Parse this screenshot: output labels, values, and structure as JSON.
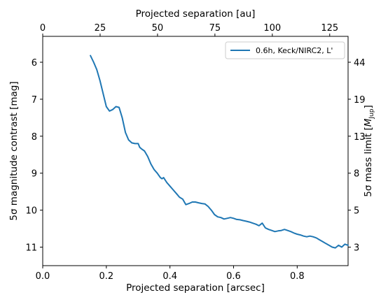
{
  "chart_data": {
    "type": "line",
    "xlabel_bottom": "Projected separation [arcsec]",
    "xlabel_top": "Projected separation [au]",
    "ylabel_left": "5σ magnitude contrast [mag]",
    "ylabel_right_prefix": "5σ mass limit [",
    "ylabel_right_symbol": "M",
    "ylabel_right_sub": "Jup",
    "ylabel_right_suffix": "]",
    "xlim": [
      0.0,
      0.96
    ],
    "ylim": [
      11.5,
      5.3
    ],
    "y_inverted": true,
    "top_xlim_au": [
      0,
      133
    ],
    "xticks_bottom": [
      "0.0",
      "0.2",
      "0.4",
      "0.6",
      "0.8"
    ],
    "xticks_top": [
      "0",
      "25",
      "50",
      "75",
      "100",
      "125"
    ],
    "yticks_left": [
      "6",
      "7",
      "8",
      "9",
      "10",
      "11"
    ],
    "yticks_right": [
      "44",
      "19",
      "13",
      "8",
      "5",
      "3"
    ],
    "legend_position": "upper-right",
    "grid": false,
    "series": [
      {
        "name": "0.6h, Keck/NIRC2, L'",
        "color": "#1f77b4",
        "x": [
          0.15,
          0.16,
          0.17,
          0.18,
          0.19,
          0.2,
          0.21,
          0.22,
          0.23,
          0.24,
          0.25,
          0.26,
          0.27,
          0.28,
          0.29,
          0.3,
          0.305,
          0.31,
          0.32,
          0.33,
          0.34,
          0.35,
          0.36,
          0.37,
          0.375,
          0.38,
          0.39,
          0.4,
          0.41,
          0.42,
          0.43,
          0.44,
          0.45,
          0.46,
          0.47,
          0.48,
          0.49,
          0.5,
          0.51,
          0.52,
          0.53,
          0.54,
          0.55,
          0.56,
          0.57,
          0.58,
          0.59,
          0.6,
          0.61,
          0.62,
          0.63,
          0.64,
          0.65,
          0.66,
          0.67,
          0.68,
          0.69,
          0.7,
          0.71,
          0.72,
          0.73,
          0.74,
          0.75,
          0.76,
          0.77,
          0.78,
          0.79,
          0.8,
          0.81,
          0.82,
          0.83,
          0.84,
          0.85,
          0.86,
          0.87,
          0.88,
          0.89,
          0.9,
          0.91,
          0.92,
          0.93,
          0.94,
          0.95,
          0.96
        ],
        "y": [
          5.82,
          6.0,
          6.2,
          6.5,
          6.85,
          7.2,
          7.32,
          7.28,
          7.2,
          7.22,
          7.5,
          7.9,
          8.1,
          8.18,
          8.2,
          8.2,
          8.3,
          8.34,
          8.4,
          8.55,
          8.75,
          8.9,
          9.0,
          9.12,
          9.15,
          9.12,
          9.25,
          9.35,
          9.45,
          9.55,
          9.65,
          9.7,
          9.85,
          9.82,
          9.78,
          9.78,
          9.8,
          9.82,
          9.83,
          9.9,
          10.0,
          10.12,
          10.18,
          10.2,
          10.24,
          10.22,
          10.2,
          10.22,
          10.25,
          10.26,
          10.28,
          10.3,
          10.32,
          10.35,
          10.38,
          10.42,
          10.35,
          10.48,
          10.52,
          10.55,
          10.58,
          10.56,
          10.55,
          10.52,
          10.55,
          10.58,
          10.62,
          10.65,
          10.67,
          10.7,
          10.72,
          10.7,
          10.72,
          10.75,
          10.8,
          10.85,
          10.9,
          10.95,
          11.0,
          11.02,
          10.95,
          11.0,
          10.92,
          10.95
        ]
      }
    ]
  }
}
